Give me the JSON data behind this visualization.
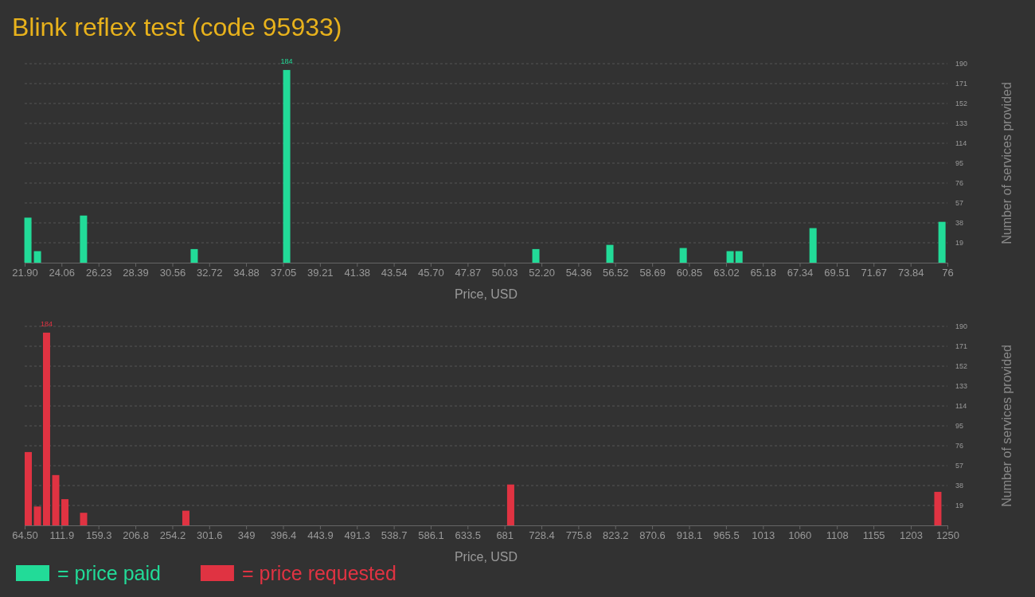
{
  "chart_data": [
    {
      "type": "bar",
      "title": "Blink reflex test (code 95933)",
      "xlabel": "Price, USD",
      "ylabel": "Number of services provided",
      "grid": "y",
      "legend": "bottom left",
      "xlim": [
        21.9,
        76
      ],
      "xticks": [
        {
          "value": 21.9,
          "label": "21.90"
        },
        24.06,
        26.23,
        28.39,
        30.56,
        32.72,
        34.88,
        37.05,
        39.21,
        41.38,
        43.54,
        {
          "value": 45.7,
          "label": "45.70"
        },
        47.87,
        50.03,
        {
          "value": 52.2,
          "label": "52.20"
        },
        54.36,
        56.52,
        58.69,
        60.85,
        63.02,
        65.18,
        67.34,
        69.51,
        71.67,
        73.84,
        76
      ],
      "ylim": [
        0,
        190
      ],
      "yticks": [
        19,
        38,
        57,
        76,
        95,
        114,
        133,
        152,
        171,
        190
      ],
      "series": [
        {
          "name": "= price paid",
          "color": "#22db98",
          "x": [
            22.09,
            22.65,
            25.35,
            31.84,
            37.26,
            51.87,
            56.21,
            60.51,
            63.26,
            63.78,
            68.12,
            75.68
          ],
          "values": [
            43,
            11,
            45,
            13,
            184,
            13,
            17,
            14,
            11,
            11,
            33,
            39
          ],
          "value_labels": [
            null,
            null,
            null,
            null,
            "184",
            null,
            null,
            null,
            null,
            null,
            null,
            null
          ]
        }
      ]
    },
    {
      "type": "bar",
      "xlabel": "Price, USD",
      "ylabel": "Number of services provided",
      "grid": "y",
      "legend": "bottom left",
      "xlim": [
        64.5,
        1250
      ],
      "xticks": [
        {
          "value": 64.5,
          "label": "64.50"
        },
        111.9,
        159.3,
        206.8,
        254.2,
        301.6,
        349,
        396.4,
        443.9,
        491.3,
        538.7,
        586.1,
        633.5,
        681,
        728.4,
        775.8,
        823.2,
        870.6,
        918.1,
        965.5,
        1013,
        1060,
        1108,
        1155,
        1203,
        1250
      ],
      "ylim": [
        0,
        190
      ],
      "yticks": [
        19,
        38,
        57,
        76,
        95,
        114,
        133,
        152,
        171,
        190
      ],
      "series": [
        {
          "name": "= price requested",
          "color": "#e03342",
          "x": [
            69.1,
            80.9,
            92.6,
            104.4,
            116.2,
            140.2,
            271.6,
            688.9,
            1237.7
          ],
          "values": [
            70,
            18,
            184,
            48,
            25,
            12,
            14,
            39,
            32
          ],
          "value_labels": [
            null,
            null,
            "184",
            null,
            null,
            null,
            null,
            null,
            null
          ]
        }
      ]
    }
  ]
}
